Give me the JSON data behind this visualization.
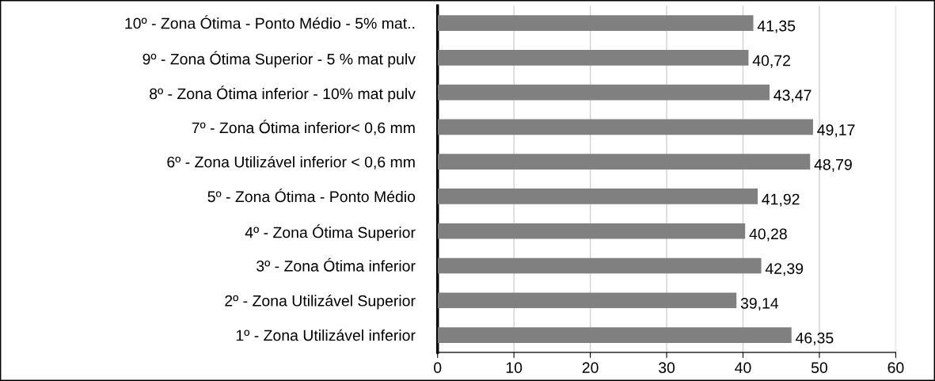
{
  "chart_data": {
    "type": "bar",
    "orientation": "horizontal",
    "categories": [
      "10º - Zona Ótima - Ponto Médio - 5% mat..",
      "9º - Zona Ótima Superior - 5 % mat pulv",
      "8º - Zona Ótima inferior - 10% mat pulv",
      "7º - Zona Ótima inferior< 0,6 mm",
      "6º - Zona Utilizável inferior < 0,6 mm",
      "5º - Zona Ótima - Ponto Médio",
      "4º - Zona Ótima Superior",
      "3º - Zona Ótima inferior",
      "2º - Zona Utilizável Superior",
      "1º - Zona Utilizável inferior"
    ],
    "values": [
      41.35,
      40.72,
      43.47,
      49.17,
      48.79,
      41.92,
      40.28,
      42.39,
      39.14,
      46.35
    ],
    "value_labels": [
      "41,35",
      "40,72",
      "43,47",
      "49,17",
      "48,79",
      "41,92",
      "40,28",
      "42,39",
      "39,14",
      "46,35"
    ],
    "color": "#808080",
    "xlim": [
      0,
      60
    ],
    "xticks": [
      0,
      10,
      20,
      30,
      40,
      50,
      60
    ],
    "grid": "x"
  }
}
